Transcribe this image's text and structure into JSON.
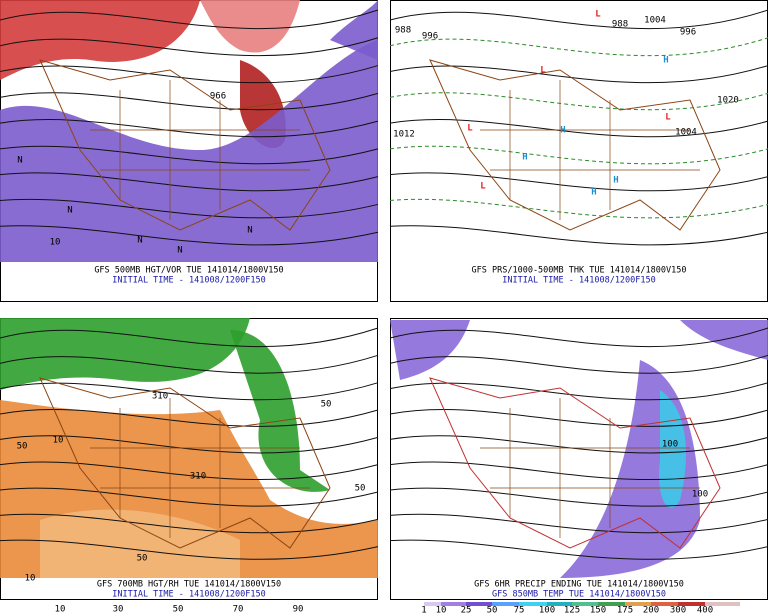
{
  "panels": [
    {
      "captions": [
        "GFS 500MB HGT/VOR TUE 141014/1800V150",
        "INITIAL TIME - 141008/1200F150"
      ],
      "labels": [
        "966",
        "N",
        "N",
        "N",
        "N",
        "N",
        "10"
      ]
    },
    {
      "captions": [
        "GFS PRS/1000-500MB THK TUE 141014/1800V150",
        "INITIAL TIME - 141008/1200F150"
      ],
      "labels": [
        "1004",
        "988",
        "996",
        "988",
        "996",
        "L",
        "L",
        "L",
        "L",
        "L",
        "H",
        "H",
        "H",
        "H",
        "H",
        "1020",
        "1012",
        "1004"
      ]
    },
    {
      "captions": [
        "GFS 700MB HGT/RH TUE 141014/1800V150",
        "INITIAL TIME - 141008/1200F150"
      ],
      "labels": [
        "10",
        "50",
        "310",
        "50",
        "310",
        "50",
        "10",
        "50"
      ]
    },
    {
      "captions": [
        "GFS 6HR PRECIP ENDING TUE 141014/1800V150",
        "GFS 850MB TEMP TUE 141014/1800V150"
      ],
      "labels": [
        "100",
        "100"
      ]
    }
  ],
  "colorbars": [
    {
      "labels": [
        "10",
        "30",
        "50",
        "70",
        "90"
      ]
    },
    {
      "labels": [
        "1",
        "10",
        "25",
        "50",
        "75",
        "100",
        "125",
        "150",
        "175",
        "200",
        "300",
        "400"
      ]
    }
  ]
}
